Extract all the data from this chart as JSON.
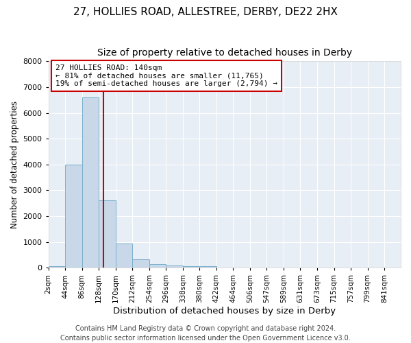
{
  "title1": "27, HOLLIES ROAD, ALLESTREE, DERBY, DE22 2HX",
  "title2": "Size of property relative to detached houses in Derby",
  "xlabel": "Distribution of detached houses by size in Derby",
  "ylabel": "Number of detached properties",
  "bin_labels": [
    "2sqm",
    "44sqm",
    "86sqm",
    "128sqm",
    "170sqm",
    "212sqm",
    "254sqm",
    "296sqm",
    "338sqm",
    "380sqm",
    "422sqm",
    "464sqm",
    "506sqm",
    "547sqm",
    "589sqm",
    "631sqm",
    "673sqm",
    "715sqm",
    "757sqm",
    "799sqm",
    "841sqm"
  ],
  "bar_heights": [
    70,
    4000,
    6600,
    2600,
    950,
    320,
    130,
    80,
    60,
    60,
    0,
    0,
    0,
    0,
    0,
    0,
    0,
    0,
    0,
    0,
    0
  ],
  "bar_color": "#c8d8e8",
  "bar_edge_color": "#7ab0cc",
  "vline_color": "#cc0000",
  "ylim": [
    0,
    8000
  ],
  "yticks": [
    0,
    1000,
    2000,
    3000,
    4000,
    5000,
    6000,
    7000,
    8000
  ],
  "annotation_text": "27 HOLLIES ROAD: 140sqm\n← 81% of detached houses are smaller (11,765)\n19% of semi-detached houses are larger (2,794) →",
  "annotation_box_color": "#ffffff",
  "annotation_box_edge": "#cc0000",
  "plot_bg_color": "#e8eef5",
  "fig_bg_color": "#ffffff",
  "grid_color": "#ffffff",
  "footer": "Contains HM Land Registry data © Crown copyright and database right 2024.\nContains public sector information licensed under the Open Government Licence v3.0.",
  "title1_fontsize": 11,
  "title2_fontsize": 10,
  "xlabel_fontsize": 9.5,
  "ylabel_fontsize": 8.5,
  "annotation_fontsize": 8,
  "footer_fontsize": 7,
  "tick_fontsize": 7.5,
  "ytick_fontsize": 8
}
